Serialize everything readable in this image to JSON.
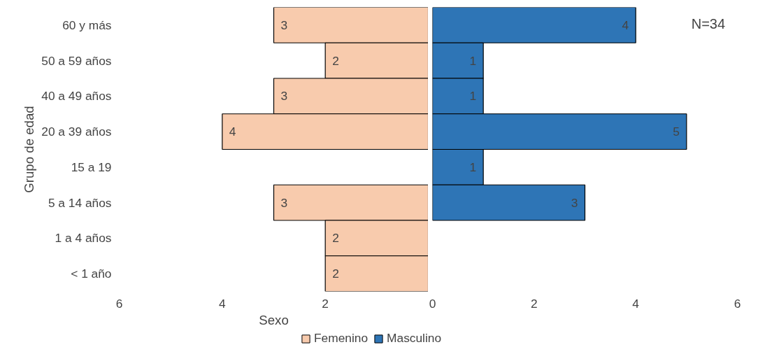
{
  "chart_data": [
    {
      "type": "bar",
      "orientation": "horizontal",
      "xlabel": "Sexo",
      "ylabel": "Grupo de edad",
      "categories": [
        "60 y más",
        "50 a 59 años",
        "40 a 49 años",
        "20 a 39 años",
        "15 a 19",
        "5 a 14 años",
        "1 a 4 años",
        "< 1 año"
      ],
      "series": [
        {
          "name": "Femenino",
          "color": "#f8cbad",
          "values": [
            3,
            2,
            3,
            4,
            null,
            3,
            2,
            2
          ],
          "value_labels": [
            "3",
            "2",
            "3",
            "4",
            null,
            "3",
            "2",
            "2"
          ]
        }
      ],
      "xlim": [
        6,
        0
      ],
      "xticks": [
        6,
        4,
        2
      ],
      "legend": "bottom"
    },
    {
      "type": "bar",
      "orientation": "horizontal",
      "annotations": [
        "N=34"
      ],
      "categories": [
        null,
        null,
        null,
        null,
        null,
        null,
        null,
        null
      ],
      "series": [
        {
          "name": "Masculino",
          "color": "#2e75b6",
          "values": [
            4,
            1,
            1,
            5,
            1,
            3,
            null,
            null
          ],
          "value_labels": [
            "4",
            "1",
            "1",
            "5",
            "1",
            "3",
            null,
            null
          ]
        }
      ],
      "xlim": [
        0,
        6
      ],
      "xticks": [
        0,
        2,
        4,
        6
      ],
      "legend": "bottom"
    }
  ]
}
